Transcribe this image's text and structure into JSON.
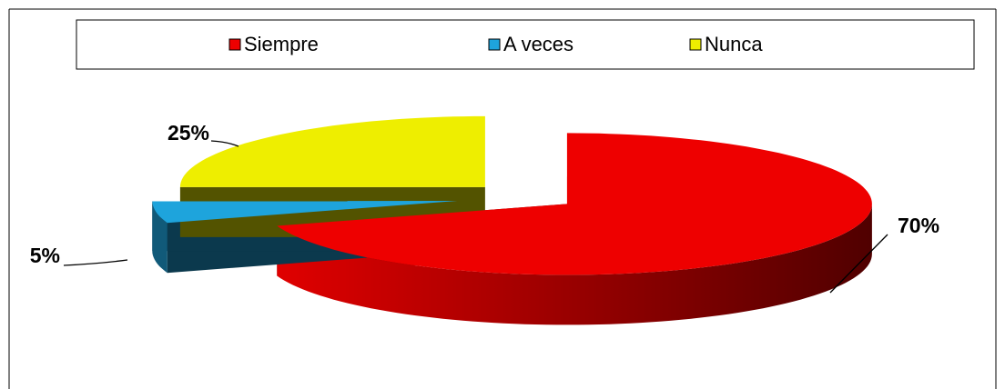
{
  "chart_data": {
    "type": "pie",
    "three_d": true,
    "exploded": true,
    "categories": [
      "Siempre",
      "A veces",
      "Nunca"
    ],
    "values": [
      70,
      5,
      25
    ],
    "value_labels": [
      "70%",
      "5%",
      "25%"
    ],
    "colors": [
      "#ee0000",
      "#1ea4dc",
      "#eeee00"
    ],
    "legend": "top"
  }
}
